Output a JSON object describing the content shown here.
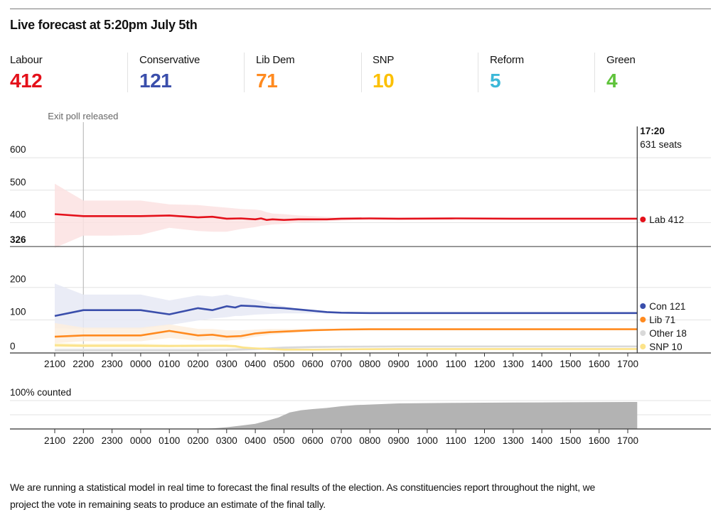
{
  "header": {
    "title": "Live forecast at 5:20pm July 5th"
  },
  "parties": [
    {
      "name": "Labour",
      "seats": "412",
      "color": "#e4101a"
    },
    {
      "name": "Conservative",
      "seats": "121",
      "color": "#3a4eab"
    },
    {
      "name": "Lib Dem",
      "seats": "71",
      "color": "#ff8a1f"
    },
    {
      "name": "SNP",
      "seats": "10",
      "color": "#fcc000"
    },
    {
      "name": "Reform",
      "seats": "5",
      "color": "#3cb8d8"
    },
    {
      "name": "Green",
      "seats": "4",
      "color": "#5fc33b"
    }
  ],
  "description": "We are running a statistical model in real time to forecast the final results of the election. As constituencies report throughout the night, we project the vote in remaining seats to produce an estimate of the final tally.",
  "chart_data": [
    {
      "type": "line",
      "title": "Seat forecast over time",
      "xlabel": "",
      "ylabel": "Seats",
      "x_unit": "hours since 21:00",
      "x_ticks": [
        "2100",
        "2200",
        "2300",
        "0000",
        "0100",
        "0200",
        "0300",
        "0400",
        "0500",
        "0600",
        "0700",
        "0800",
        "0900",
        "1000",
        "1100",
        "1200",
        "1300",
        "1400",
        "1500",
        "1600",
        "1700"
      ],
      "ylim": [
        0,
        650
      ],
      "y_ticks": [
        0,
        100,
        200,
        400,
        500,
        600
      ],
      "majority_line": {
        "value": 326,
        "label": "326"
      },
      "grid": true,
      "annotations": [
        {
          "x": 1,
          "label": "Exit poll released"
        },
        {
          "x": 20.33,
          "time_label": "17:20",
          "seats_label": "631 seats"
        }
      ],
      "series": [
        {
          "name": "Lab",
          "label": "Lab 412",
          "final": 412,
          "color": "#e4101a",
          "band_color": "#fbe2e2",
          "x": [
            0,
            1,
            2,
            3,
            4,
            5,
            5.5,
            6,
            6.5,
            7,
            7.2,
            7.4,
            7.6,
            8,
            8.5,
            9,
            9.5,
            10,
            11,
            12,
            14,
            16,
            18,
            20.33
          ],
          "y": [
            426,
            420,
            420,
            420,
            422,
            416,
            418,
            412,
            413,
            410,
            413,
            408,
            410,
            408,
            410,
            410,
            410,
            412,
            413,
            412,
            413,
            412,
            412,
            412
          ],
          "lo": [
            322,
            360,
            360,
            362,
            384,
            374,
            372,
            372,
            380,
            386,
            390,
            392,
            394,
            396,
            400,
            402,
            404,
            406,
            408,
            408,
            410,
            410,
            411,
            412
          ],
          "hi": [
            520,
            468,
            468,
            468,
            456,
            454,
            450,
            446,
            442,
            440,
            438,
            432,
            428,
            426,
            422,
            420,
            418,
            416,
            415,
            414,
            414,
            413,
            413,
            412
          ]
        },
        {
          "name": "Con",
          "label": "Con 121",
          "final": 121,
          "color": "#3a4eab",
          "band_color": "#e6e9f5",
          "x": [
            0,
            1,
            2,
            3,
            4,
            5,
            5.5,
            6,
            6.3,
            6.5,
            7,
            7.5,
            8,
            8.5,
            9,
            9.5,
            10,
            11,
            12,
            14,
            16,
            18,
            20.33
          ],
          "y": [
            112,
            130,
            130,
            130,
            117,
            136,
            130,
            142,
            138,
            144,
            142,
            138,
            136,
            132,
            128,
            124,
            122,
            121,
            121,
            121,
            121,
            121,
            121
          ],
          "lo": [
            74,
            72,
            72,
            72,
            84,
            98,
            104,
            108,
            112,
            112,
            116,
            118,
            120,
            120,
            120,
            120,
            120,
            120,
            121,
            121,
            121,
            121,
            121
          ],
          "hi": [
            212,
            178,
            178,
            178,
            160,
            176,
            172,
            178,
            172,
            170,
            162,
            152,
            142,
            134,
            130,
            126,
            124,
            122,
            121,
            121,
            121,
            121,
            121
          ]
        },
        {
          "name": "Lib",
          "label": "Lib 71",
          "final": 71,
          "color": "#ff8a1f",
          "band_color": "#fdeede",
          "x": [
            0,
            1,
            2,
            3,
            4,
            5,
            5.5,
            6,
            6.5,
            7,
            7.5,
            8,
            9,
            10,
            11,
            12,
            14,
            16,
            18,
            20.33
          ],
          "y": [
            48,
            52,
            52,
            52,
            66,
            52,
            54,
            48,
            50,
            58,
            62,
            64,
            68,
            70,
            71,
            71,
            71,
            71,
            71,
            71
          ],
          "lo": [
            28,
            34,
            34,
            34,
            44,
            36,
            38,
            36,
            40,
            48,
            54,
            58,
            64,
            68,
            70,
            70,
            71,
            71,
            71,
            71
          ],
          "hi": [
            90,
            76,
            76,
            76,
            86,
            72,
            72,
            68,
            68,
            70,
            72,
            72,
            73,
            72,
            72,
            72,
            71,
            71,
            71,
            71
          ]
        },
        {
          "name": "Other",
          "label": "Other 18",
          "final": 18,
          "color": "#d9d9d9",
          "band_color": "#ececec",
          "x": [
            0,
            1,
            2,
            3,
            4,
            5,
            6,
            7,
            8,
            9,
            10,
            12,
            14,
            16,
            18,
            20.33
          ],
          "y": [
            6,
            6,
            6,
            6,
            6,
            6,
            7,
            10,
            14,
            16,
            17,
            18,
            18,
            18,
            18,
            18
          ],
          "lo": [
            2,
            2,
            2,
            2,
            2,
            2,
            3,
            6,
            10,
            13,
            15,
            17,
            18,
            18,
            18,
            18
          ],
          "hi": [
            12,
            12,
            12,
            12,
            12,
            12,
            12,
            14,
            18,
            20,
            20,
            19,
            18,
            18,
            18,
            18
          ]
        },
        {
          "name": "SNP",
          "label": "SNP 10",
          "final": 10,
          "color": "#fce38a",
          "band_color": "#fdf1c4",
          "x": [
            0,
            1,
            2,
            3,
            4,
            5,
            6,
            6.3,
            6.6,
            7,
            8,
            9,
            10,
            12,
            14,
            16,
            18,
            20.33
          ],
          "y": [
            22,
            20,
            20,
            20,
            19,
            20,
            20,
            19,
            14,
            12,
            8,
            8,
            9,
            10,
            10,
            10,
            10,
            10
          ],
          "lo": [
            16,
            16,
            16,
            16,
            16,
            16,
            16,
            14,
            10,
            8,
            5,
            6,
            8,
            9,
            10,
            10,
            10,
            10
          ],
          "hi": [
            28,
            26,
            26,
            26,
            24,
            24,
            24,
            22,
            18,
            15,
            11,
            10,
            10,
            10,
            10,
            10,
            10,
            10
          ]
        }
      ]
    },
    {
      "type": "area",
      "title": "Share of seats counted",
      "label": "100% counted",
      "x_ticks": [
        "2100",
        "2200",
        "2300",
        "0000",
        "0100",
        "0200",
        "0300",
        "0400",
        "0500",
        "0600",
        "0700",
        "0800",
        "0900",
        "1000",
        "1100",
        "1200",
        "1300",
        "1400",
        "1500",
        "1600",
        "1700"
      ],
      "ylim": [
        0,
        100
      ],
      "color": "#b3b3b3",
      "x": [
        0,
        5,
        5.5,
        6,
        6.5,
        7,
        7.3,
        7.8,
        8.2,
        8.6,
        9,
        9.5,
        10,
        10.5,
        11,
        12,
        14,
        16,
        18,
        20.33
      ],
      "y": [
        0,
        0,
        2,
        6,
        12,
        18,
        26,
        40,
        58,
        66,
        70,
        74,
        80,
        84,
        86,
        90,
        92,
        93,
        94,
        95
      ]
    }
  ]
}
